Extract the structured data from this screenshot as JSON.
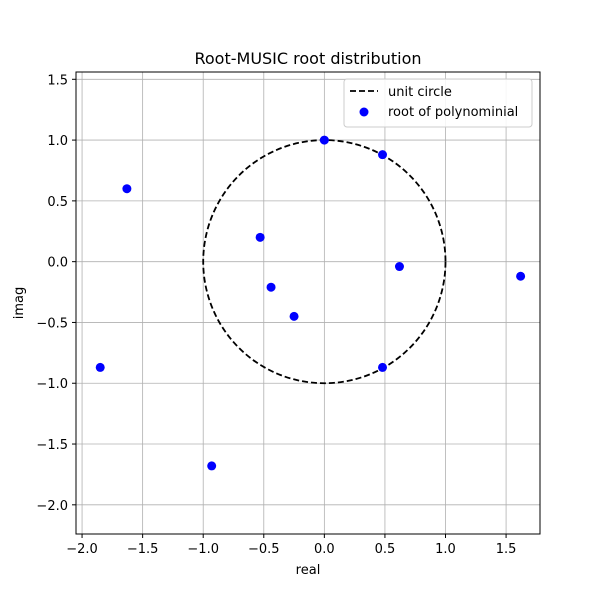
{
  "chart_data": {
    "type": "scatter",
    "title": "Root-MUSIC root distribution",
    "xlabel": "real",
    "ylabel": "imag",
    "xlim": [
      -2.05,
      1.78
    ],
    "ylim": [
      -2.24,
      1.56
    ],
    "xticks": [
      -2.0,
      -1.5,
      -1.0,
      -0.5,
      0.0,
      0.5,
      1.0,
      1.5
    ],
    "xtick_labels": [
      "−2.0",
      "−1.5",
      "−1.0",
      "−0.5",
      "0.0",
      "0.5",
      "1.0",
      "1.5"
    ],
    "yticks": [
      -2.0,
      -1.5,
      -1.0,
      -0.5,
      0.0,
      0.5,
      1.0,
      1.5
    ],
    "ytick_labels": [
      "−2.0",
      "−1.5",
      "−1.0",
      "−0.5",
      "0.0",
      "0.5",
      "1.0",
      "1.5"
    ],
    "grid": true,
    "legend_position": "top-right",
    "series": [
      {
        "name": "unit circle",
        "kind": "line",
        "style": "dashed",
        "color": "#000000",
        "shape": "circle",
        "center": [
          0,
          0
        ],
        "radius": 1
      },
      {
        "name": "root of polynominial",
        "kind": "scatter",
        "color": "#0000ff",
        "points": [
          {
            "x": 0.0,
            "y": 1.0
          },
          {
            "x": 0.48,
            "y": 0.88
          },
          {
            "x": -1.63,
            "y": 0.6
          },
          {
            "x": -0.53,
            "y": 0.2
          },
          {
            "x": 0.62,
            "y": -0.04
          },
          {
            "x": 1.62,
            "y": -0.12
          },
          {
            "x": -0.44,
            "y": -0.21
          },
          {
            "x": -0.25,
            "y": -0.45
          },
          {
            "x": -1.85,
            "y": -0.87
          },
          {
            "x": 0.48,
            "y": -0.87
          },
          {
            "x": -0.93,
            "y": -1.68
          }
        ]
      }
    ]
  }
}
